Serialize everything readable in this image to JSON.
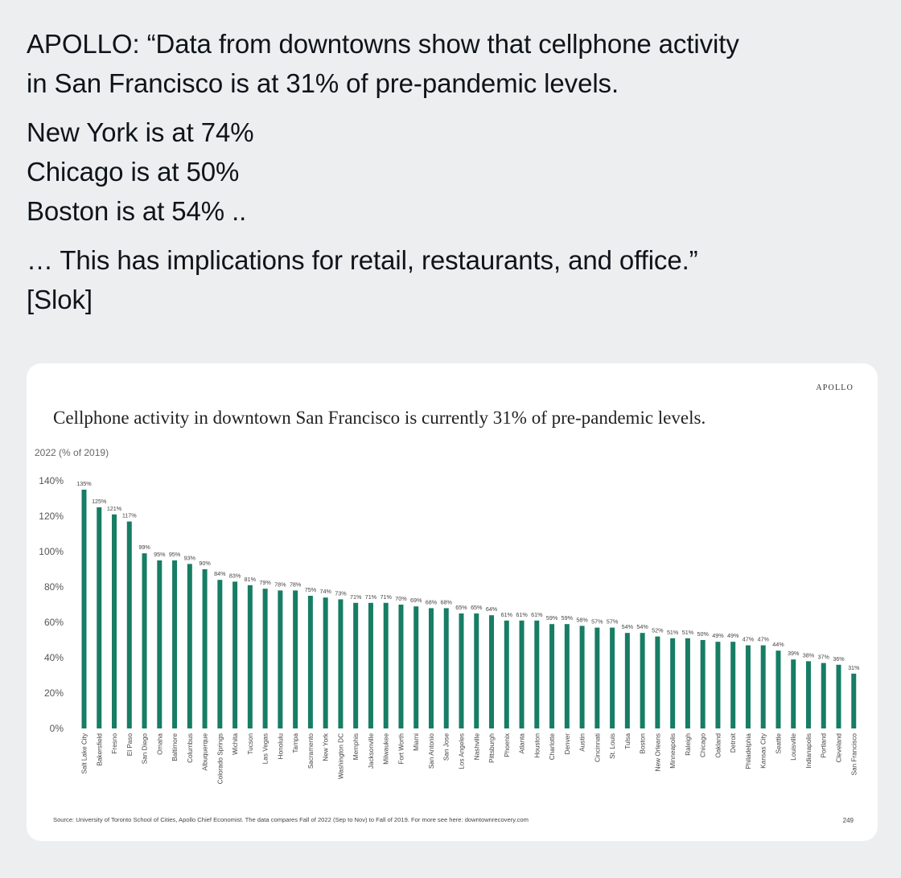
{
  "tweet": {
    "line1": "APOLLO: “Data from downtowns show that cellphone activity",
    "line2": "in San Francisco is at 31% of pre-pandemic levels.",
    "line3": "New York is at 74%",
    "line4": "Chicago is at 50%",
    "line5": "Boston is at 54% ..",
    "line6": "… This has implications for retail, restaurants, and office.”",
    "line7": "[Slok]"
  },
  "card": {
    "brand": "APOLLO",
    "source": "Source: University of Toronto School of Cities, Apollo Chief Economist. The data compares Fall of 2022 (Sep to Nov) to Fall of 2019. For more see here: downtownrecovery.com",
    "page_number": "249",
    "bar_color": "#177d64"
  },
  "chart_data": {
    "type": "bar",
    "title": "Cellphone activity in downtown San Francisco is currently 31% of pre-pandemic levels.",
    "ylabel": "2022 (% of 2019)",
    "xlabel": "",
    "ylim": [
      0,
      140
    ],
    "yticks": [
      0,
      20,
      40,
      60,
      80,
      100,
      120,
      140
    ],
    "ytick_labels": [
      "0%",
      "20%",
      "40%",
      "60%",
      "80%",
      "100%",
      "120%",
      "140%"
    ],
    "categories": [
      "Salt Lake City",
      "Bakersfield",
      "Fresno",
      "El Paso",
      "San Diego",
      "Omaha",
      "Baltimore",
      "Columbus",
      "Albuquerque",
      "Colorado Springs",
      "Wichita",
      "Tucson",
      "Las Vegas",
      "Honolulu",
      "Tampa",
      "Sacramento",
      "New York",
      "Washington DC",
      "Memphis",
      "Jacksonville",
      "Milwaukee",
      "Fort Worth",
      "Miami",
      "San Antonio",
      "San Jose",
      "Los Angeles",
      "Nashville",
      "Pittsburgh",
      "Phoenix",
      "Atlanta",
      "Houston",
      "Charlotte",
      "Denver",
      "Austin",
      "Cincinnati",
      "St. Louis",
      "Tulsa",
      "Boston",
      "New Orleans",
      "Minneapolis",
      "Raleigh",
      "Chicago",
      "Oakland",
      "Detroit",
      "Philadelphia",
      "Kansas City",
      "Seattle",
      "Louisville",
      "Indianapolis",
      "Portland",
      "Cleveland",
      "San Francisco"
    ],
    "values": [
      135,
      125,
      121,
      117,
      99,
      95,
      95,
      93,
      90,
      84,
      83,
      81,
      79,
      78,
      78,
      75,
      74,
      73,
      71,
      71,
      71,
      70,
      69,
      68,
      68,
      65,
      65,
      64,
      61,
      61,
      61,
      59,
      59,
      58,
      57,
      57,
      54,
      54,
      52,
      51,
      51,
      50,
      49,
      49,
      47,
      47,
      44,
      39,
      38,
      37,
      36,
      31
    ],
    "value_labels": [
      "135%",
      "125%",
      "121%",
      "117%",
      "99%",
      "95%",
      "95%",
      "93%",
      "90%",
      "84%",
      "83%",
      "81%",
      "79%",
      "78%",
      "78%",
      "75%",
      "74%",
      "73%",
      "71%",
      "71%",
      "71%",
      "70%",
      "69%",
      "68%",
      "68%",
      "65%",
      "65%",
      "64%",
      "61%",
      "61%",
      "61%",
      "59%",
      "59%",
      "58%",
      "57%",
      "57%",
      "54%",
      "54%",
      "52%",
      "51%",
      "51%",
      "50%",
      "49%",
      "49%",
      "47%",
      "47%",
      "44%",
      "39%",
      "38%",
      "37%",
      "36%",
      "31%"
    ],
    "grid": false,
    "legend": "none"
  }
}
